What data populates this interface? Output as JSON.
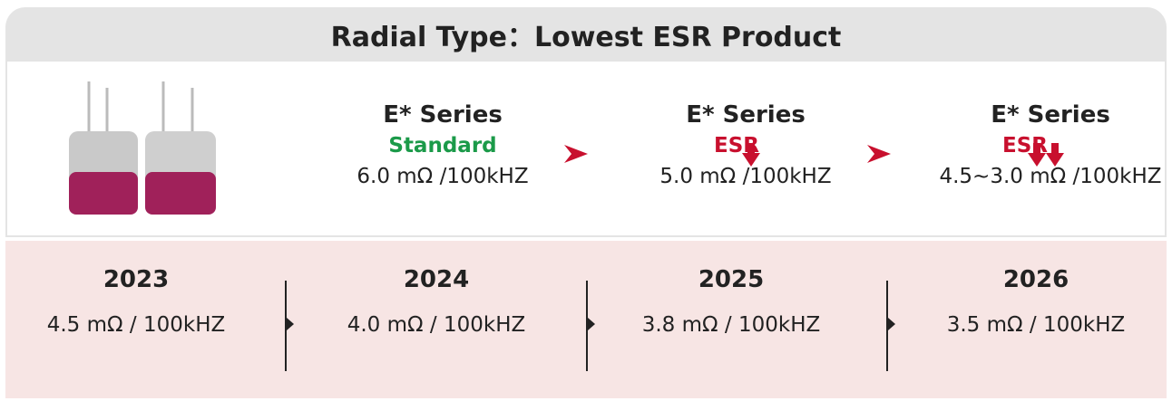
{
  "header": {
    "title": "Radial Type：Lowest ESR Product"
  },
  "series": [
    {
      "title": "E* Series",
      "subtitle": "Standard",
      "esr": "6.0 mΩ /100kHZ"
    },
    {
      "title": "E* Series",
      "subtitle": "ESR",
      "esr": "5.0 mΩ /100kHZ"
    },
    {
      "title": "E* Series",
      "subtitle": "ESR",
      "esr": "4.5~3.0 mΩ /100kHZ"
    }
  ],
  "timeline": [
    {
      "year": "2023",
      "value": "4.5 mΩ / 100kHZ"
    },
    {
      "year": "2024",
      "value": "4.0 mΩ / 100kHZ"
    },
    {
      "year": "2025",
      "value": "3.8 mΩ / 100kHZ"
    },
    {
      "year": "2026",
      "value": "3.5 mΩ / 100kHZ"
    }
  ]
}
